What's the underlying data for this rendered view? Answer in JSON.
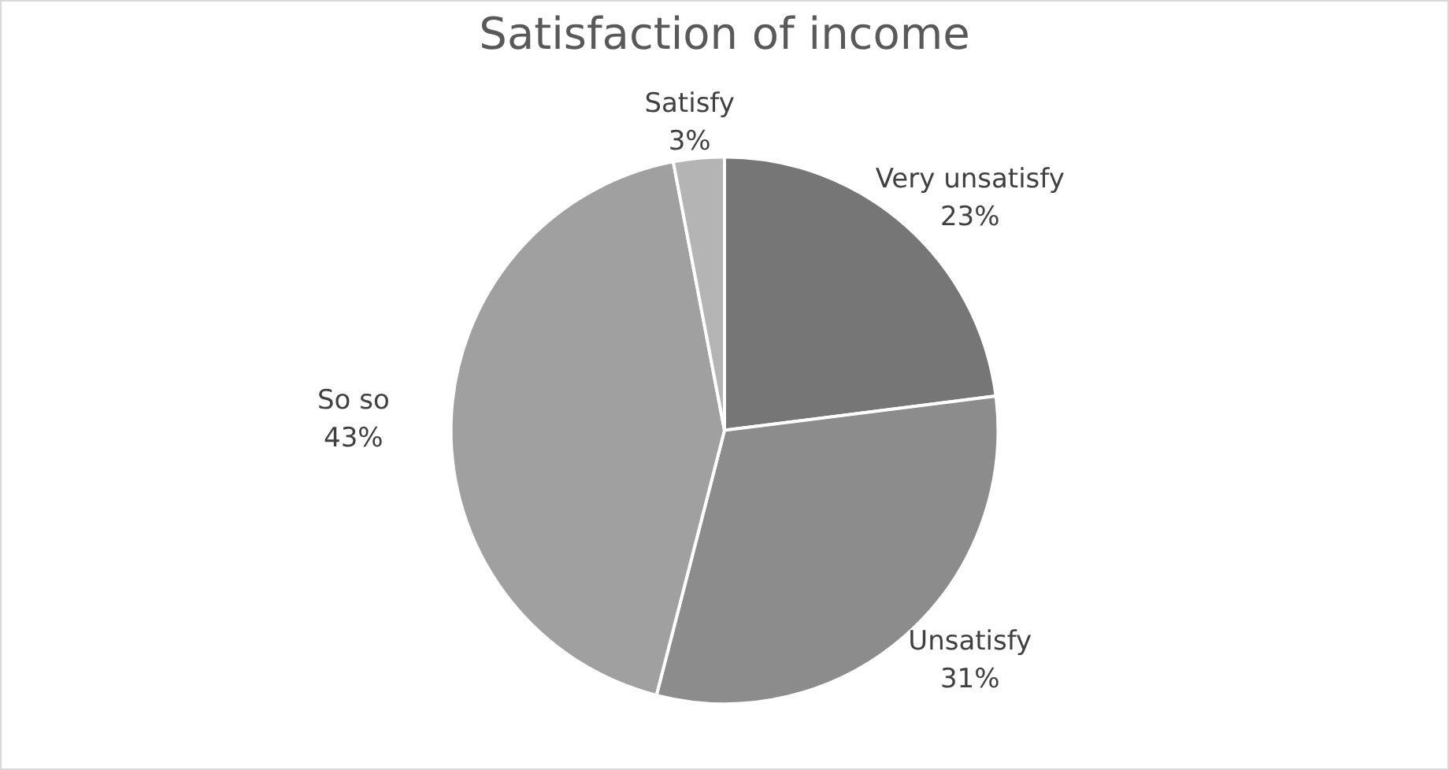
{
  "chart_data": {
    "type": "pie",
    "title": "Satisfaction of income",
    "categories": [
      "Very unsatisfy",
      "Unsatisfy",
      "So so",
      "Satisfy"
    ],
    "values": [
      23,
      31,
      43,
      3
    ],
    "value_labels": [
      "23%",
      "31%",
      "43%",
      "3%"
    ],
    "colors": [
      "#767676",
      "#8c8c8c",
      "#a0a0a0",
      "#b4b4b4"
    ],
    "legend": false
  }
}
